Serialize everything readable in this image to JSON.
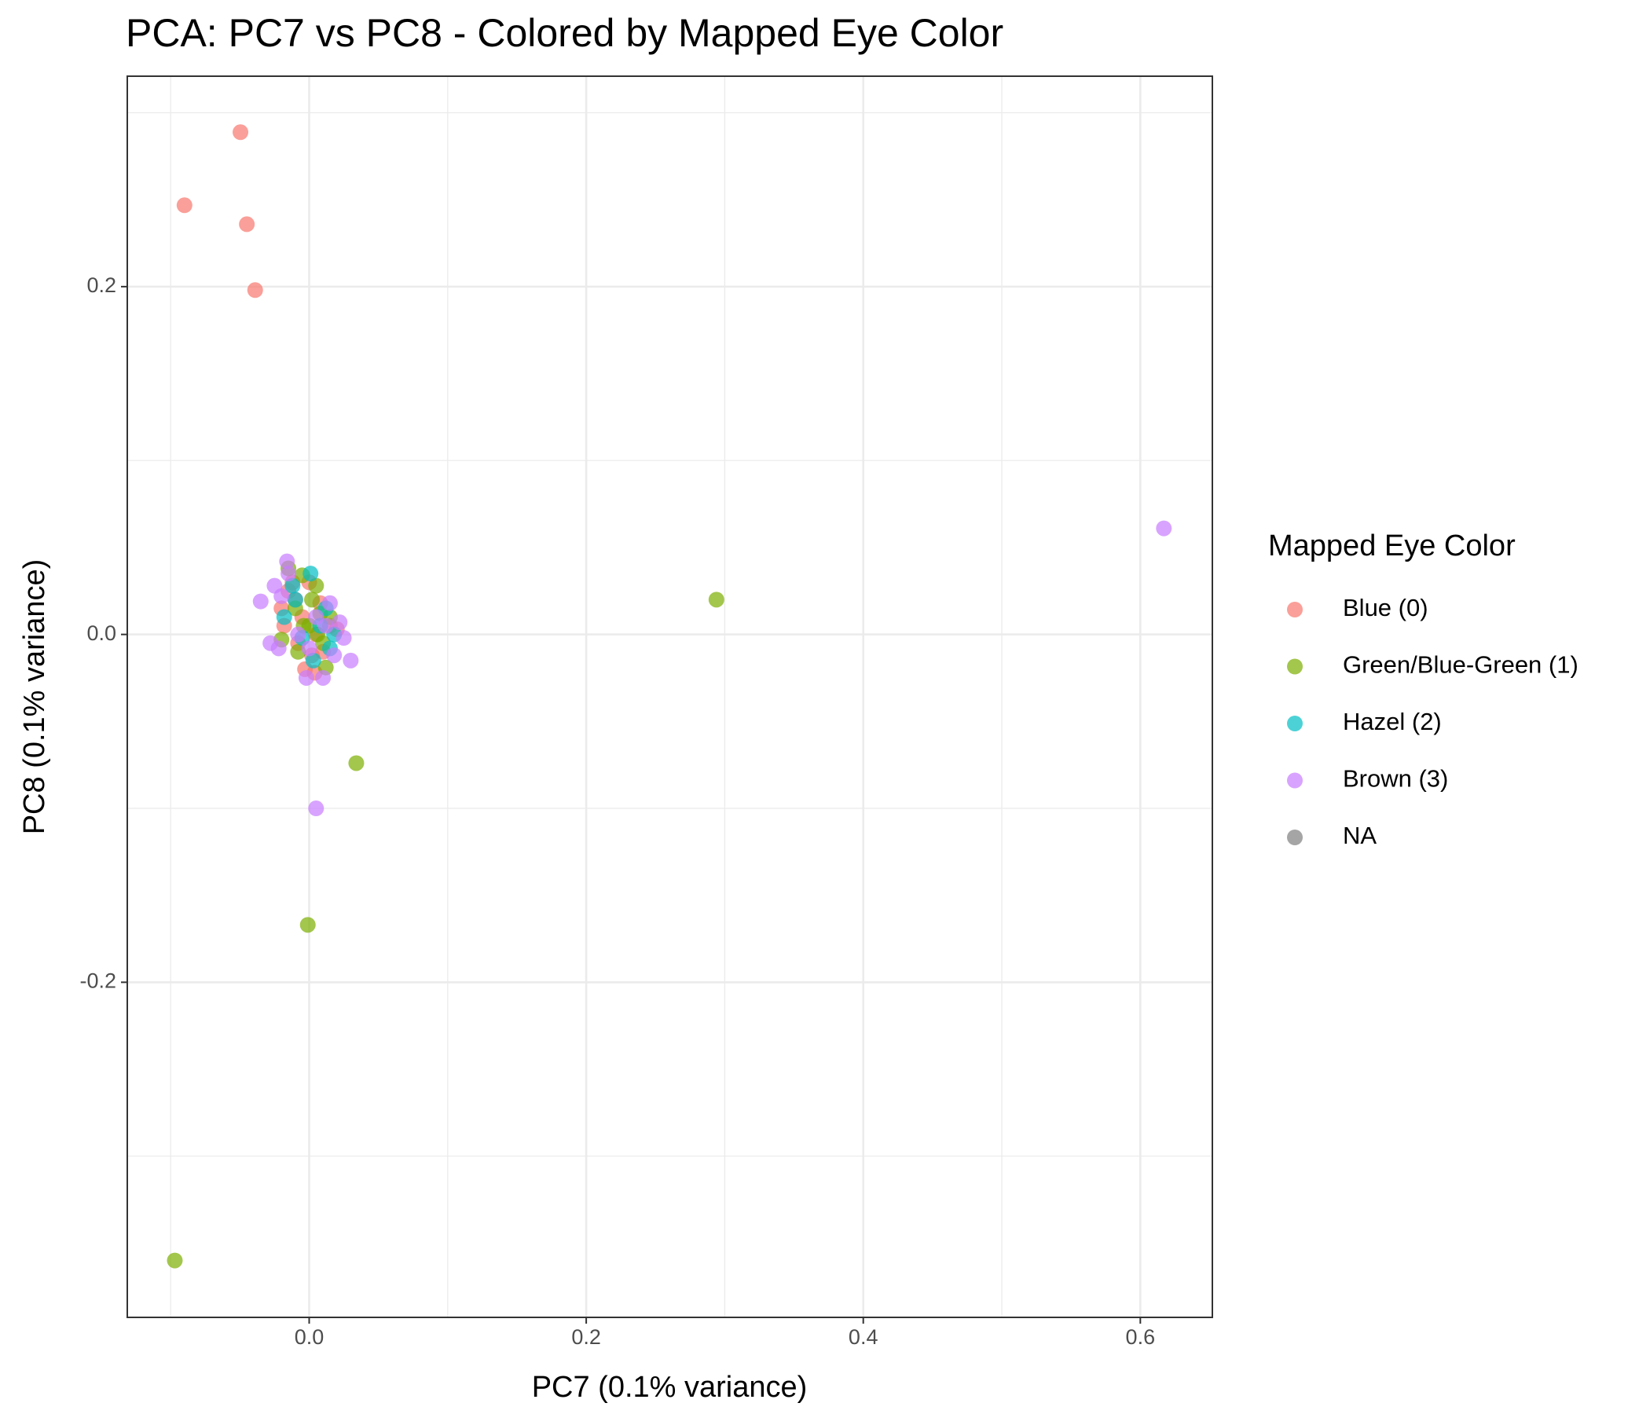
{
  "chart_data": {
    "type": "scatter",
    "title": "PCA: PC7 vs PC8 - Colored by Mapped Eye Color",
    "x_label": "PC7 (0.1% variance)",
    "y_label": "PC8 (0.1% variance)",
    "legend_title": "Mapped Eye Color",
    "legend_position": "right",
    "grid": true,
    "xlim": [
      -0.1313,
      0.652
    ],
    "ylim": [
      -0.3927,
      0.321
    ],
    "xticks": [
      {
        "value": 0,
        "label": "0.0"
      },
      0.2,
      0.4,
      0.6
    ],
    "yticks": [
      -0.2,
      {
        "value": 0,
        "label": "0.0"
      },
      0.2
    ],
    "x_minor_grid": [
      -0.1,
      0.1,
      0.3,
      0.5
    ],
    "y_minor_grid": [
      -0.3,
      -0.1,
      0.1,
      0.3
    ],
    "series": [
      {
        "name": "Blue (0)",
        "color": "#F8766D",
        "x": [
          -0.02,
          -0.015,
          -0.01,
          -0.005,
          0.0,
          0.005,
          0.01,
          -0.003,
          0.015,
          -0.018,
          0.008,
          0.002,
          -0.008,
          0.02,
          -0.012,
          0.004,
          -0.0496,
          -0.09,
          -0.045,
          -0.039
        ],
        "values": [
          0.015,
          0.025,
          0.02,
          0.01,
          0.03,
          0.0,
          -0.01,
          -0.02,
          0.005,
          0.005,
          0.018,
          -0.012,
          -0.005,
          0.003,
          0.03,
          -0.022,
          0.2888,
          0.2468,
          0.2359,
          0.198
        ]
      },
      {
        "name": "Green/Blue-Green (1)",
        "color": "#7CAE00",
        "x": [
          -0.015,
          -0.005,
          0.005,
          -0.01,
          0.0,
          0.006,
          0.012,
          -0.004,
          0.015,
          -0.02,
          0.008,
          -0.008,
          0.01,
          0.002,
          0.294,
          0.034,
          -0.001,
          -0.097
        ],
        "values": [
          0.038,
          0.034,
          0.028,
          0.015,
          0.005,
          0.0,
          -0.019,
          0.005,
          0.01,
          -0.003,
          0.012,
          -0.01,
          -0.005,
          0.02,
          0.02,
          -0.074,
          -0.167,
          -0.36
        ]
      },
      {
        "name": "Hazel (2)",
        "color": "#00BFC4",
        "x": [
          0.001,
          -0.012,
          -0.018,
          0.015,
          -0.005,
          0.008,
          0.018,
          -0.01,
          0.003,
          0.012
        ],
        "values": [
          0.035,
          0.028,
          0.01,
          -0.008,
          -0.002,
          0.005,
          0.0,
          0.02,
          -0.015,
          0.015
        ]
      },
      {
        "name": "Brown (3)",
        "color": "#C77CFF",
        "x": [
          -0.016,
          -0.025,
          -0.035,
          -0.02,
          -0.028,
          0.03,
          0.025,
          0.022,
          0.015,
          0.01,
          -0.002,
          0.005,
          -0.008,
          0.018,
          -0.015,
          0.0,
          0.012,
          -0.022,
          0.617,
          0.005
        ],
        "values": [
          0.042,
          0.028,
          0.019,
          0.022,
          -0.005,
          -0.015,
          -0.002,
          0.007,
          0.018,
          -0.025,
          -0.025,
          0.01,
          0.0,
          -0.012,
          0.035,
          -0.008,
          0.005,
          -0.008,
          0.061,
          -0.1
        ]
      },
      {
        "name": "NA",
        "color": "#7F7F7F",
        "x": [],
        "values": []
      }
    ]
  }
}
